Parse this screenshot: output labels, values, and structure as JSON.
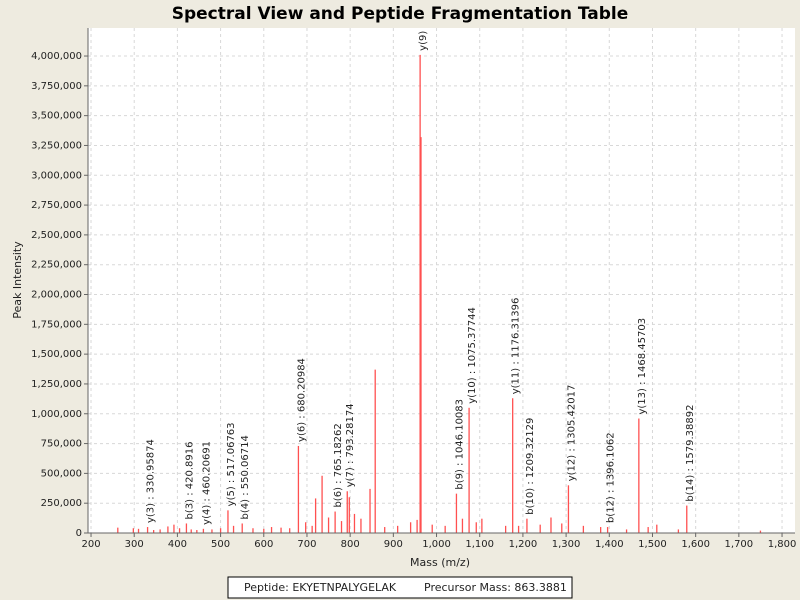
{
  "chart_data": {
    "type": "stem",
    "title": "Spectral View and Peptide Fragmentation Table",
    "x_label": "Mass (m/z)",
    "y_label": "Peak Intensity",
    "color": "#ff5050",
    "grid": true,
    "xlim": [
      193,
      1830
    ],
    "ylim": [
      0,
      4235000
    ],
    "xticks": [
      200,
      300,
      400,
      500,
      600,
      700,
      800,
      900,
      {
        "value": 1000,
        "label": "1,000"
      },
      {
        "value": 1100,
        "label": "1,100"
      },
      {
        "value": 1200,
        "label": "1,200"
      },
      {
        "value": 1300,
        "label": "1,300"
      },
      {
        "value": 1400,
        "label": "1,400"
      },
      {
        "value": 1500,
        "label": "1,500"
      },
      {
        "value": 1600,
        "label": "1,600"
      },
      {
        "value": 1700,
        "label": "1,700"
      },
      {
        "value": 1800,
        "label": "1,800"
      }
    ],
    "yticks": [
      0,
      {
        "value": 250000,
        "label": "250,000"
      },
      {
        "value": 500000,
        "label": "500,000"
      },
      {
        "value": 750000,
        "label": "750,000"
      },
      {
        "value": 1000000,
        "label": "1,000,000"
      },
      {
        "value": 1250000,
        "label": "1,250,000"
      },
      {
        "value": 1500000,
        "label": "1,500,000"
      },
      {
        "value": 1750000,
        "label": "1,750,000"
      },
      {
        "value": 2000000,
        "label": "2,000,000"
      },
      {
        "value": 2250000,
        "label": "2,250,000"
      },
      {
        "value": 2500000,
        "label": "2,500,000"
      },
      {
        "value": 2750000,
        "label": "2,750,000"
      },
      {
        "value": 3000000,
        "label": "3,000,000"
      },
      {
        "value": 3250000,
        "label": "3,250,000"
      },
      {
        "value": 3500000,
        "label": "3,500,000"
      },
      {
        "value": 3750000,
        "label": "3,750,000"
      },
      {
        "value": 4000000,
        "label": "4,000,000"
      }
    ],
    "x": [
      262,
      298,
      310,
      330.95874,
      345,
      360,
      378,
      392,
      405,
      420.8916,
      432,
      445,
      460.20691,
      480,
      500,
      517.06763,
      530,
      550.06714,
      575,
      600,
      618,
      640,
      660,
      680.20984,
      697,
      712,
      720,
      735,
      750,
      765.18262,
      780,
      793.28174,
      798,
      810,
      825,
      846,
      858,
      880,
      910,
      940,
      955,
      962,
      964,
      990,
      1020,
      1046.10083,
      1060,
      1075.37744,
      1092,
      1105,
      1160,
      1176.31396,
      1190,
      1209.32129,
      1240,
      1265,
      1290,
      1305.42017,
      1340,
      1380,
      1396.1062,
      1440,
      1468.45703,
      1490,
      1510,
      1560,
      1579.38892,
      1750
    ],
    "values": [
      45000,
      40000,
      35000,
      50000,
      25000,
      30000,
      55000,
      70000,
      40000,
      80000,
      30000,
      25000,
      35000,
      30000,
      40000,
      190000,
      60000,
      80000,
      40000,
      35000,
      50000,
      45000,
      40000,
      730000,
      90000,
      60000,
      290000,
      480000,
      130000,
      180000,
      100000,
      350000,
      300000,
      160000,
      120000,
      370000,
      1370000,
      50000,
      60000,
      90000,
      110000,
      4010000,
      3320000,
      70000,
      60000,
      330000,
      120000,
      1050000,
      90000,
      120000,
      60000,
      1130000,
      60000,
      120000,
      70000,
      130000,
      80000,
      400000,
      60000,
      50000,
      50000,
      30000,
      960000,
      50000,
      70000,
      30000,
      230000,
      20000
    ],
    "annotations": [
      {
        "x": 330.95874,
        "y": 50000,
        "text": "y(3) : 330.95874"
      },
      {
        "x": 420.8916,
        "y": 80000,
        "text": "b(3) : 420.8916"
      },
      {
        "x": 460.20691,
        "y": 35000,
        "text": "y(4) : 460.20691"
      },
      {
        "x": 517.06763,
        "y": 190000,
        "text": "y(5) : 517.06763"
      },
      {
        "x": 550.06714,
        "y": 80000,
        "text": "b(4) : 550.06714"
      },
      {
        "x": 680.20984,
        "y": 730000,
        "text": "y(6) : 680.20984"
      },
      {
        "x": 765.18262,
        "y": 180000,
        "text": "b(6) : 765.18262"
      },
      {
        "x": 793.28174,
        "y": 350000,
        "text": "y(7) : 793.28174"
      },
      {
        "x": 962,
        "y": 4010000,
        "text": "y(9) :"
      },
      {
        "x": 1046.10083,
        "y": 330000,
        "text": "b(9) : 1046.10083"
      },
      {
        "x": 1075.37744,
        "y": 1050000,
        "text": "y(10) : 1075.37744"
      },
      {
        "x": 1176.31396,
        "y": 1130000,
        "text": "y(11) : 1176.31396"
      },
      {
        "x": 1209.32129,
        "y": 120000,
        "text": "b(10) : 1209.32129"
      },
      {
        "x": 1305.42017,
        "y": 400000,
        "text": "y(12) : 1305.42017"
      },
      {
        "x": 1396.1062,
        "y": 50000,
        "text": "b(12) : 1396.1062"
      },
      {
        "x": 1468.45703,
        "y": 960000,
        "text": "y(13) : 1468.45703"
      },
      {
        "x": 1579.38892,
        "y": 230000,
        "text": "b(14) : 1579.38892"
      }
    ]
  },
  "footer": {
    "peptide": "Peptide: EKYETNPALYGELAK",
    "precursor": "Precursor Mass: 863.3881"
  }
}
